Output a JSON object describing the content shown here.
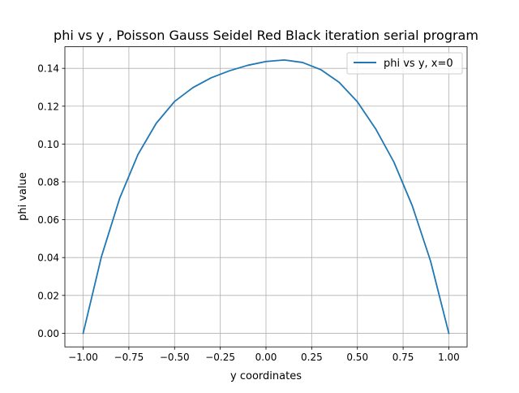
{
  "chart_data": {
    "type": "line",
    "title": "phi vs y  , Poisson Gauss Seidel Red Black iteration serial program",
    "xlabel": "y coordinates",
    "ylabel": "phi value",
    "xlim": [
      -1.1,
      1.1
    ],
    "ylim": [
      -0.0072,
      0.1514
    ],
    "xticks": [
      -1.0,
      -0.75,
      -0.5,
      -0.25,
      0.0,
      0.25,
      0.5,
      0.75,
      1.0
    ],
    "xtick_labels": [
      "−1.00",
      "−0.75",
      "−0.50",
      "−0.25",
      "0.00",
      "0.25",
      "0.50",
      "0.75",
      "1.00"
    ],
    "yticks": [
      0.0,
      0.02,
      0.04,
      0.06,
      0.08,
      0.1,
      0.12,
      0.14
    ],
    "ytick_labels": [
      "0.00",
      "0.02",
      "0.04",
      "0.06",
      "0.08",
      "0.10",
      "0.12",
      "0.14"
    ],
    "grid": true,
    "legend_position": "top-right",
    "series": [
      {
        "name": "phi vs y, x=0",
        "color": "#1f77b4",
        "x": [
          -1.0,
          -0.9,
          -0.8,
          -0.7,
          -0.6,
          -0.5,
          -0.4,
          -0.3,
          -0.2,
          -0.1,
          0.0,
          0.1,
          0.2,
          0.3,
          0.4,
          0.5,
          0.6,
          0.7,
          0.8,
          0.9,
          1.0
        ],
        "y": [
          0.0,
          0.0405,
          0.0714,
          0.0945,
          0.111,
          0.1225,
          0.1298,
          0.135,
          0.1387,
          0.1416,
          0.1436,
          0.1444,
          0.1431,
          0.1393,
          0.1326,
          0.1223,
          0.108,
          0.0904,
          0.0674,
          0.0382,
          0.0
        ]
      }
    ]
  }
}
